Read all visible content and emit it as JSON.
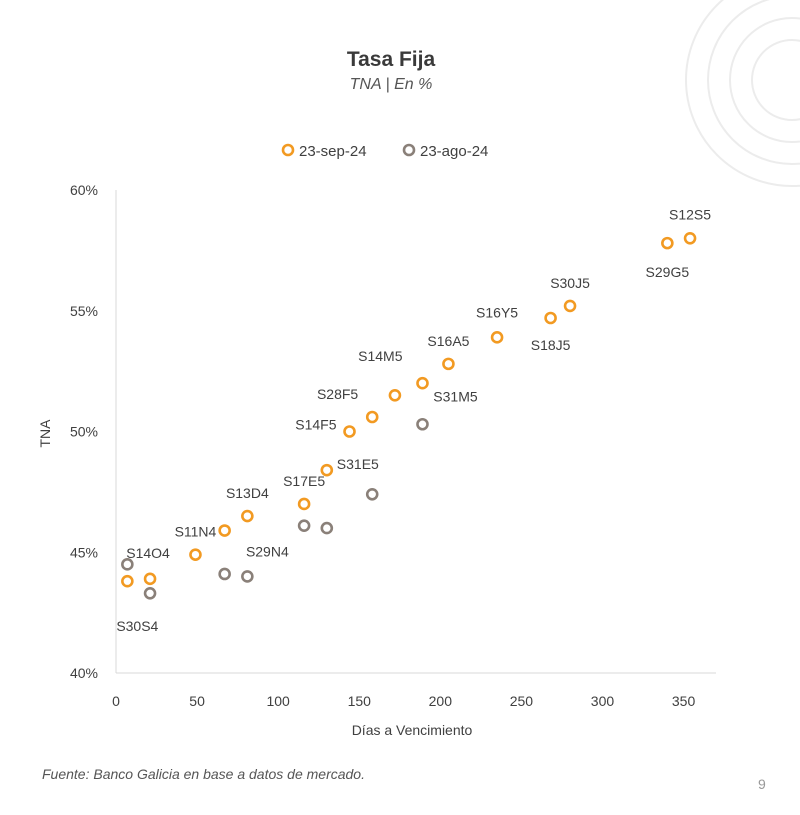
{
  "chart_data": {
    "type": "scatter",
    "title": "Tasa Fija",
    "subtitle": "TNA | En %",
    "xlabel": "Días a Vencimiento",
    "ylabel": "TNA",
    "xlim": [
      0,
      370
    ],
    "ylim": [
      40,
      60
    ],
    "xticks": [
      0,
      50,
      100,
      150,
      200,
      250,
      300,
      350
    ],
    "yticks": [
      40,
      45,
      50,
      55,
      60
    ],
    "ytick_labels": [
      "40%",
      "45%",
      "50%",
      "55%",
      "60%"
    ],
    "grid": false,
    "legend_position": "top-center",
    "series": [
      {
        "name": "23-sep-24",
        "color": "#F29A22",
        "points": [
          {
            "x": 7,
            "y": 43.8,
            "label": "S30S4"
          },
          {
            "x": 21,
            "y": 43.9,
            "label": "S14O4"
          },
          {
            "x": 49,
            "y": 44.9,
            "label": "S11N4"
          },
          {
            "x": 67,
            "y": 45.9,
            "label": ""
          },
          {
            "x": 81,
            "y": 46.5,
            "label": "S13D4"
          },
          {
            "x": 116,
            "y": 47.0,
            "label": "S17E5"
          },
          {
            "x": 130,
            "y": 48.4,
            "label": "S31E5"
          },
          {
            "x": 144,
            "y": 50.0,
            "label": "S14F5"
          },
          {
            "x": 158,
            "y": 50.6,
            "label": "S28F5"
          },
          {
            "x": 172,
            "y": 51.5,
            "label": ""
          },
          {
            "x": 189,
            "y": 52.0,
            "label": "S14M5"
          },
          {
            "x": 205,
            "y": 52.8,
            "label": "S16A5"
          },
          {
            "x": 235,
            "y": 53.9,
            "label": "S16Y5"
          },
          {
            "x": 268,
            "y": 54.7,
            "label": "S18J5"
          },
          {
            "x": 280,
            "y": 55.2,
            "label": "S30J5"
          },
          {
            "x": 340,
            "y": 57.8,
            "label": "S29G5"
          },
          {
            "x": 354,
            "y": 58.0,
            "label": "S12S5"
          }
        ]
      },
      {
        "name": "23-ago-24",
        "color": "#8A8079",
        "points": [
          {
            "x": 7,
            "y": 44.5,
            "label": ""
          },
          {
            "x": 21,
            "y": 43.3,
            "label": ""
          },
          {
            "x": 67,
            "y": 44.1,
            "label": ""
          },
          {
            "x": 81,
            "y": 44.0,
            "label": "S29N4"
          },
          {
            "x": 116,
            "y": 46.1,
            "label": ""
          },
          {
            "x": 130,
            "y": 46.0,
            "label": ""
          },
          {
            "x": 158,
            "y": 47.4,
            "label": ""
          },
          {
            "x": 189,
            "y": 50.3,
            "label": "S31M5"
          }
        ]
      }
    ]
  },
  "source": "Fuente: Banco Galicia en base a datos de mercado.",
  "page_number": "9"
}
